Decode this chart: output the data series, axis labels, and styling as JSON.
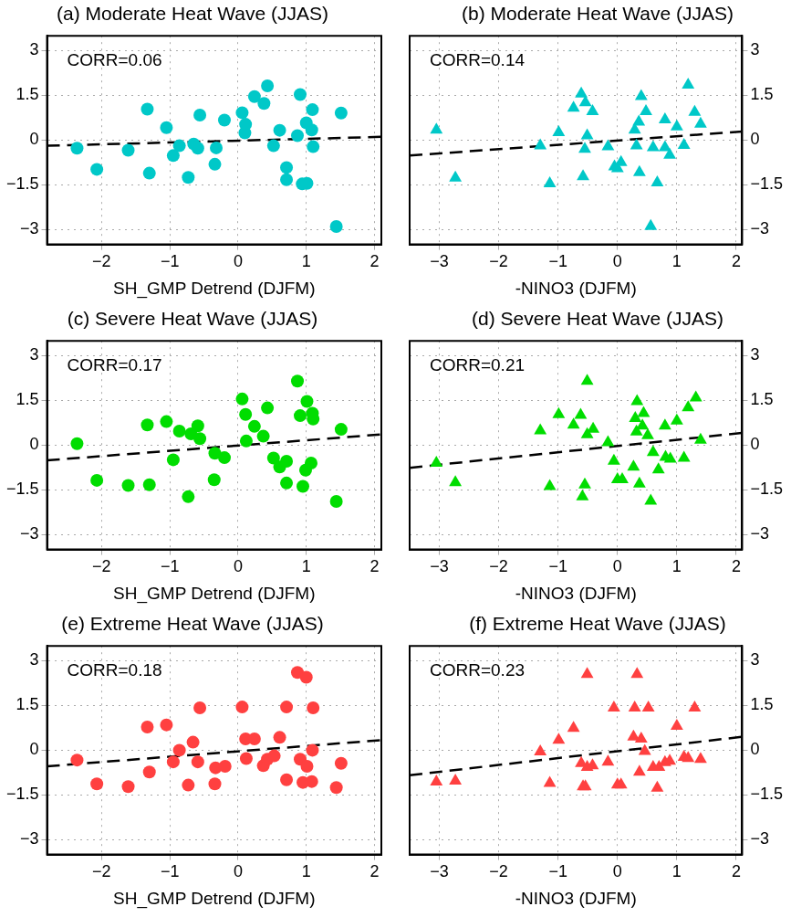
{
  "chart_data": [
    {
      "type": "scatter",
      "title": "(a) Moderate Heat Wave (JJAS)",
      "xlabel": "SH_GMP Detrend (DJFM)",
      "annotations": [
        "CORR=0.06"
      ],
      "xlim": [
        -2.8,
        2.1
      ],
      "xticks": [
        -2,
        -1,
        0,
        1,
        2
      ],
      "ylim": [
        -3.5,
        3.5
      ],
      "yticks": [
        -3,
        -1.5,
        0,
        1.5,
        3
      ],
      "grid": true,
      "legend": false,
      "series": [
        {
          "type": "scatter",
          "color": "#00c8c8",
          "marker": "circle",
          "x": [
            -2.36,
            -2.07,
            -1.61,
            -1.33,
            -1.3,
            -1.05,
            -0.95,
            -0.86,
            -0.73,
            -0.65,
            -0.59,
            -0.56,
            -0.34,
            -0.32,
            -0.2,
            0.06,
            0.11,
            0.1,
            0.24,
            0.38,
            0.43,
            0.52,
            0.61,
            0.71,
            0.71,
            0.87,
            0.91,
            0.94,
            1.01,
            1.0,
            1.08,
            1.09,
            1.1,
            1.44,
            1.51
          ],
          "values": [
            -0.27,
            -0.98,
            -0.34,
            1.04,
            -1.11,
            0.42,
            -0.52,
            -0.19,
            -1.25,
            -0.13,
            -0.27,
            0.84,
            -0.81,
            -0.26,
            0.67,
            0.92,
            0.53,
            0.24,
            1.46,
            1.23,
            1.82,
            -0.19,
            0.33,
            -0.92,
            -1.33,
            0.15,
            1.53,
            -1.47,
            -1.45,
            0.58,
            0.34,
            1.02,
            -0.22,
            -2.9,
            0.91
          ]
        },
        {
          "type": "line",
          "color": "#000000",
          "marker": "none",
          "line_style": "dashed",
          "x": [
            -2.8,
            2.1
          ],
          "values": [
            -0.19,
            0.11
          ]
        }
      ]
    },
    {
      "type": "scatter",
      "title": "(b) Moderate Heat Wave (JJAS)",
      "xlabel": "-NINO3 (DJFM)",
      "annotations": [
        "CORR=0.14"
      ],
      "xlim": [
        -3.5,
        2.1
      ],
      "xticks": [
        -3,
        -2,
        -1,
        0,
        1,
        2
      ],
      "ylim": [
        -3.5,
        3.5
      ],
      "yticks": [
        -3,
        -1.5,
        0,
        1.5,
        3
      ],
      "grid": true,
      "legend": false,
      "series": [
        {
          "type": "scatter",
          "color": "#00c8c8",
          "marker": "triangle",
          "x": [
            -3.05,
            -2.73,
            -1.3,
            -1.14,
            -0.99,
            -0.74,
            -0.61,
            -0.58,
            -0.54,
            -0.51,
            -0.55,
            -0.42,
            -0.16,
            -0.05,
            0.0,
            0.06,
            0.29,
            0.32,
            0.37,
            0.36,
            0.4,
            0.48,
            0.6,
            0.67,
            0.8,
            0.8,
            0.88,
            1.0,
            1.12,
            1.19,
            1.3,
            1.4,
            0.56
          ],
          "values": [
            0.34,
            -1.27,
            -0.19,
            -1.46,
            0.26,
            1.08,
            1.55,
            -1.22,
            1.26,
            0.15,
            -0.3,
            0.96,
            -0.22,
            -0.89,
            -0.95,
            -0.75,
            0.34,
            -0.19,
            -1.08,
            0.61,
            1.47,
            0.96,
            -0.25,
            -1.43,
            0.69,
            -0.25,
            -0.5,
            0.45,
            -0.17,
            1.85,
            0.94,
            0.54,
            -2.89
          ]
        },
        {
          "type": "line",
          "color": "#000000",
          "marker": "none",
          "line_style": "dashed",
          "x": [
            -3.5,
            2.1
          ],
          "values": [
            -0.52,
            0.29
          ]
        }
      ]
    },
    {
      "type": "scatter",
      "title": "(c) Severe Heat Wave (JJAS)",
      "xlabel": "SH_GMP Detrend (DJFM)",
      "annotations": [
        "CORR=0.17"
      ],
      "xlim": [
        -2.8,
        2.1
      ],
      "xticks": [
        -2,
        -1,
        0,
        1,
        2
      ],
      "ylim": [
        -3.5,
        3.5
      ],
      "yticks": [
        -3,
        -1.5,
        0,
        1.5,
        3
      ],
      "grid": true,
      "legend": false,
      "series": [
        {
          "type": "scatter",
          "color": "#00dd00",
          "marker": "circle",
          "x": [
            -2.36,
            -2.07,
            -1.61,
            -1.33,
            -1.3,
            -1.05,
            -0.95,
            -0.86,
            -0.73,
            -0.69,
            -0.59,
            -0.56,
            -0.34,
            -0.35,
            -0.2,
            0.06,
            0.11,
            0.12,
            0.24,
            0.37,
            0.43,
            0.52,
            0.61,
            0.71,
            0.71,
            0.87,
            0.91,
            0.95,
            0.99,
            1.01,
            1.07,
            1.09,
            1.1,
            1.44,
            1.51
          ],
          "values": [
            0.05,
            -1.18,
            -1.35,
            0.68,
            -1.33,
            0.79,
            -0.49,
            0.47,
            -1.73,
            0.38,
            0.65,
            0.22,
            -0.27,
            -1.16,
            -0.42,
            1.55,
            1.03,
            0.14,
            0.63,
            0.3,
            1.25,
            -0.43,
            -0.73,
            -0.54,
            -1.27,
            2.15,
            0.99,
            -1.38,
            -0.84,
            1.47,
            -0.6,
            1.07,
            0.88,
            -1.89,
            0.53
          ]
        },
        {
          "type": "line",
          "color": "#000000",
          "marker": "none",
          "line_style": "dashed",
          "x": [
            -2.8,
            2.1
          ],
          "values": [
            -0.51,
            0.36
          ]
        }
      ]
    },
    {
      "type": "scatter",
      "title": "(d) Severe Heat Wave (JJAS)",
      "xlabel": "-NINO3 (DJFM)",
      "annotations": [
        "CORR=0.21"
      ],
      "xlim": [
        -3.5,
        2.1
      ],
      "xticks": [
        -3,
        -2,
        -1,
        0,
        1,
        2
      ],
      "ylim": [
        -3.5,
        3.5
      ],
      "yticks": [
        -3,
        -1.5,
        0,
        1.5,
        3
      ],
      "grid": true,
      "legend": false,
      "series": [
        {
          "type": "scatter",
          "color": "#00dd00",
          "marker": "triangle",
          "x": [
            -3.05,
            -2.73,
            -1.3,
            -1.14,
            -0.99,
            -0.74,
            -0.62,
            -0.55,
            -0.59,
            -0.51,
            -0.41,
            -0.16,
            -0.06,
            0.0,
            0.08,
            0.27,
            0.33,
            0.3,
            0.32,
            0.37,
            0.44,
            0.42,
            0.51,
            0.6,
            0.69,
            0.8,
            0.81,
            0.89,
            1.0,
            1.12,
            1.19,
            1.32,
            1.4,
            0.56,
            -0.51
          ],
          "values": [
            -0.6,
            -1.25,
            0.49,
            -1.38,
            1.03,
            0.68,
            1.01,
            -1.33,
            -1.73,
            0.36,
            0.54,
            0.09,
            -0.53,
            -1.15,
            -1.15,
            -0.73,
            1.47,
            0.9,
            0.45,
            -1.3,
            1.07,
            0.65,
            0.33,
            -0.24,
            -0.82,
            0.65,
            -0.4,
            -0.46,
            0.82,
            -0.43,
            1.26,
            1.59,
            0.17,
            -1.87,
            2.15
          ]
        },
        {
          "type": "line",
          "color": "#000000",
          "marker": "none",
          "line_style": "dashed",
          "x": [
            -3.5,
            2.1
          ],
          "values": [
            -0.76,
            0.41
          ]
        }
      ]
    },
    {
      "type": "scatter",
      "title": "(e) Extreme Heat Wave (JJAS)",
      "xlabel": "SH_GMP Detrend (DJFM)",
      "annotations": [
        "CORR=0.18"
      ],
      "xlim": [
        -2.8,
        2.1
      ],
      "xticks": [
        -2,
        -1,
        0,
        1,
        2
      ],
      "ylim": [
        -3.5,
        3.5
      ],
      "yticks": [
        -3,
        -1.5,
        0,
        1.5,
        3
      ],
      "grid": true,
      "legend": false,
      "series": [
        {
          "type": "scatter",
          "color": "#ff4040",
          "marker": "circle",
          "x": [
            -2.36,
            -2.07,
            -1.61,
            -1.33,
            -1.3,
            -1.05,
            -0.95,
            -0.86,
            -0.73,
            -0.66,
            -0.59,
            -0.56,
            -0.34,
            -0.33,
            -0.19,
            0.06,
            0.11,
            0.12,
            0.24,
            0.37,
            0.43,
            0.53,
            0.61,
            0.71,
            0.71,
            0.87,
            0.91,
            0.95,
            1.0,
            1.01,
            1.08,
            1.09,
            1.1,
            1.44,
            1.51
          ],
          "values": [
            -0.33,
            -1.13,
            -1.22,
            0.78,
            -0.73,
            0.85,
            -0.39,
            0,
            -1.17,
            0.27,
            -0.39,
            1.42,
            -1.13,
            -0.59,
            -0.54,
            1.45,
            0.38,
            -0.28,
            0.38,
            -0.52,
            -0.3,
            -0.19,
            0.43,
            1.45,
            -0.99,
            2.61,
            -0.3,
            -1.08,
            2.45,
            -0.54,
            -1.05,
            0,
            1.42,
            -1.25,
            -0.44
          ]
        },
        {
          "type": "line",
          "color": "#000000",
          "marker": "none",
          "line_style": "dashed",
          "x": [
            -2.8,
            2.1
          ],
          "values": [
            -0.54,
            0.34
          ]
        }
      ]
    },
    {
      "type": "scatter",
      "title": "(f) Extreme Heat Wave (JJAS)",
      "xlabel": "-NINO3 (DJFM)",
      "annotations": [
        "CORR=0.23"
      ],
      "xlim": [
        -3.5,
        2.1
      ],
      "xticks": [
        -3,
        -2,
        -1,
        0,
        1,
        2
      ],
      "ylim": [
        -3.5,
        3.5
      ],
      "yticks": [
        -3,
        -1.5,
        0,
        1.5,
        3
      ],
      "grid": true,
      "legend": false,
      "series": [
        {
          "type": "scatter",
          "color": "#ff4040",
          "marker": "triangle",
          "x": [
            -3.05,
            -2.73,
            -1.3,
            -1.14,
            -0.99,
            -0.74,
            -0.61,
            -0.58,
            -0.54,
            -0.51,
            -0.42,
            -0.16,
            -0.06,
            0.0,
            0.06,
            0.29,
            0.27,
            0.33,
            0.37,
            0.4,
            0.46,
            0.52,
            0.6,
            0.67,
            0.7,
            0.8,
            0.88,
            1.0,
            1.12,
            1.19,
            1.3,
            1.4,
            -0.51
          ],
          "values": [
            -1.06,
            -1.03,
            -0.05,
            -1.11,
            0.34,
            0.74,
            -0.44,
            -1.22,
            -1.22,
            -0.57,
            -0.52,
            -0.39,
            1.42,
            -1.16,
            -1.16,
            1.42,
            0.45,
            2.55,
            -0.73,
            0.38,
            -0.03,
            1.42,
            -0.57,
            -1.27,
            -0.57,
            -0.41,
            -0.36,
            0.81,
            -0.23,
            -0.27,
            1.42,
            -0.3,
            2.55
          ]
        },
        {
          "type": "line",
          "color": "#000000",
          "marker": "none",
          "line_style": "dashed",
          "x": [
            -3.5,
            2.1
          ],
          "values": [
            -0.84,
            0.45
          ]
        }
      ]
    }
  ]
}
